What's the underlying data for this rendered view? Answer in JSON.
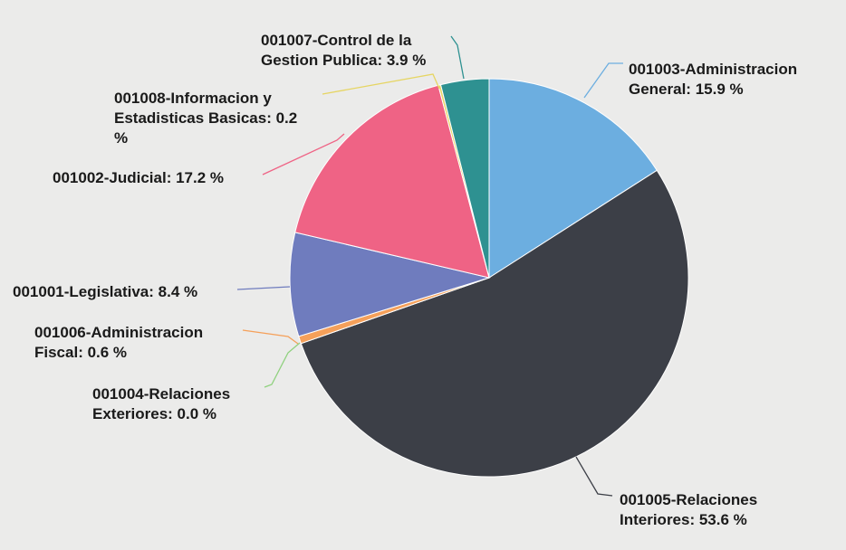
{
  "chart_data": {
    "type": "pie",
    "values": [
      15.9,
      53.6,
      0.0,
      0.6,
      8.4,
      17.2,
      0.2,
      3.9
    ],
    "value_labels": [
      "001003-Administracion General: 15.9 %",
      "001005-Relaciones Interiores: 53.6 %",
      "001004-Relaciones Exteriores: 0.0 %",
      "001006-Administracion Fiscal: 0.6 %",
      "001001-Legislativa: 8.4 %",
      "001002-Judicial: 17.2 %",
      "001008-Informacion y Estadisticas Basicas: 0.2 %",
      "001007-Control de la Gestion Publica: 3.9 %"
    ],
    "colors": [
      "#6caee0",
      "#3c3f47",
      "#8fd17e",
      "#f5a05a",
      "#6f7cbe",
      "#ef6385",
      "#e6d562",
      "#2e9191"
    ]
  }
}
